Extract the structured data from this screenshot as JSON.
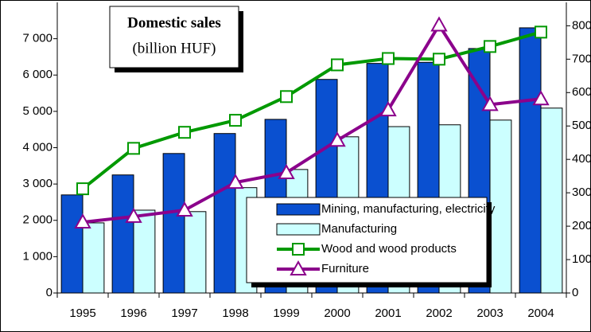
{
  "chart_data": {
    "type": "bar-line",
    "title": "Domestic sales",
    "subtitle": "(billion HUF)",
    "categories": [
      "1995",
      "1996",
      "1997",
      "1998",
      "1999",
      "2000",
      "2001",
      "2002",
      "2003",
      "2004"
    ],
    "series": [
      {
        "name": "Mining, manufacturing, electricity",
        "type": "bar",
        "color": "#0a50d0",
        "values": [
          2700,
          3250,
          3840,
          4390,
          4780,
          5880,
          6320,
          6350,
          6730,
          7300
        ]
      },
      {
        "name": "Manufacturing",
        "type": "bar",
        "color": "#ccffff",
        "values": [
          1930,
          2280,
          2240,
          2900,
          3400,
          4300,
          4580,
          4630,
          4760,
          5090
        ]
      },
      {
        "name": "Wood and wood products",
        "type": "line",
        "marker": "square",
        "axis": "y2",
        "color": "#009900",
        "values": [
          312,
          433,
          481,
          517,
          588,
          683,
          702,
          700,
          738,
          781
        ]
      },
      {
        "name": "Furniture",
        "type": "line",
        "marker": "triangle",
        "axis": "y2",
        "color": "#8b008b",
        "values": [
          212,
          229,
          248,
          331,
          360,
          457,
          548,
          802,
          564,
          581
        ]
      }
    ],
    "ylim": [
      0,
      8000
    ],
    "yticks": [
      0,
      {
        "value": 1000,
        "label": "1 000"
      },
      {
        "value": 2000,
        "label": "2 000"
      },
      {
        "value": 3000,
        "label": "3 000"
      },
      {
        "value": 4000,
        "label": "4 000"
      },
      {
        "value": 5000,
        "label": "5 000"
      },
      {
        "value": 6000,
        "label": "6 000"
      },
      {
        "value": 7000,
        "label": "7 000"
      }
    ],
    "y2lim": [
      0,
      870
    ],
    "y2ticks": [
      0,
      100,
      200,
      300,
      400,
      500,
      600,
      700,
      800
    ]
  }
}
